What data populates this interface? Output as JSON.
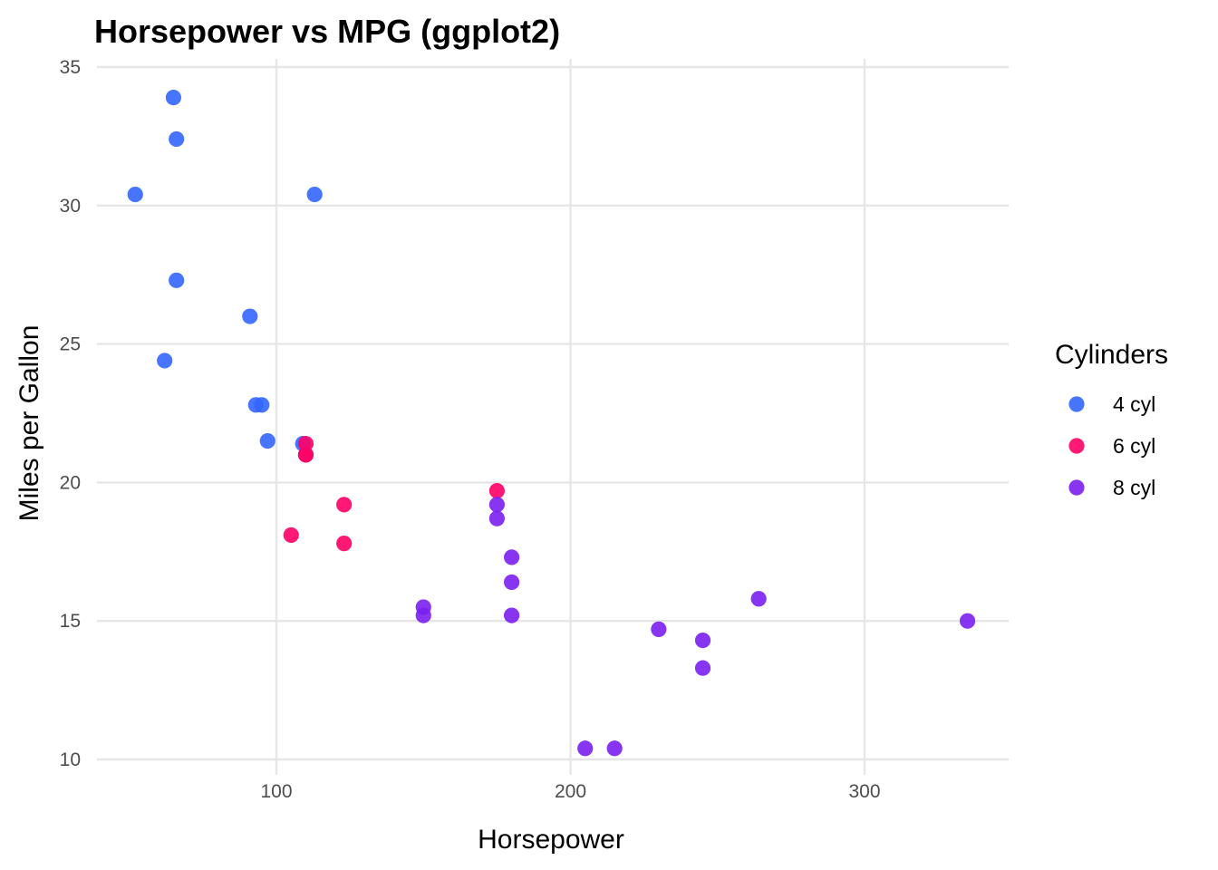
{
  "chart_data": {
    "type": "scatter",
    "title": "Horsepower vs MPG (ggplot2)",
    "xlabel": "Horsepower",
    "ylabel": "Miles per Gallon",
    "xlim": [
      40,
      350
    ],
    "ylim": [
      9.5,
      35
    ],
    "x_ticks": [
      100,
      200,
      300
    ],
    "y_ticks": [
      10,
      15,
      20,
      25,
      30,
      35
    ],
    "grid": true,
    "legend": {
      "title": "Cylinders",
      "placement": "right"
    },
    "series": [
      {
        "name": "4 cyl",
        "color": "#3366ff",
        "points": [
          [
            93,
            22.8
          ],
          [
            62,
            24.4
          ],
          [
            95,
            22.8
          ],
          [
            66,
            32.4
          ],
          [
            52,
            30.4
          ],
          [
            65,
            33.9
          ],
          [
            97,
            21.5
          ],
          [
            66,
            27.3
          ],
          [
            91,
            26.0
          ],
          [
            113,
            30.4
          ],
          [
            109,
            21.4
          ]
        ]
      },
      {
        "name": "6 cyl",
        "color": "#ff0066",
        "points": [
          [
            110,
            21.0
          ],
          [
            110,
            21.0
          ],
          [
            110,
            21.4
          ],
          [
            105,
            18.1
          ],
          [
            123,
            19.2
          ],
          [
            123,
            17.8
          ],
          [
            175,
            19.7
          ]
        ]
      },
      {
        "name": "8 cyl",
        "color": "#7a1ff0",
        "points": [
          [
            175,
            18.7
          ],
          [
            245,
            14.3
          ],
          [
            180,
            16.4
          ],
          [
            180,
            17.3
          ],
          [
            180,
            15.2
          ],
          [
            205,
            10.4
          ],
          [
            215,
            10.4
          ],
          [
            230,
            14.7
          ],
          [
            150,
            15.5
          ],
          [
            150,
            15.2
          ],
          [
            245,
            13.3
          ],
          [
            175,
            19.2
          ],
          [
            264,
            15.8
          ],
          [
            335,
            15.0
          ]
        ]
      }
    ]
  }
}
